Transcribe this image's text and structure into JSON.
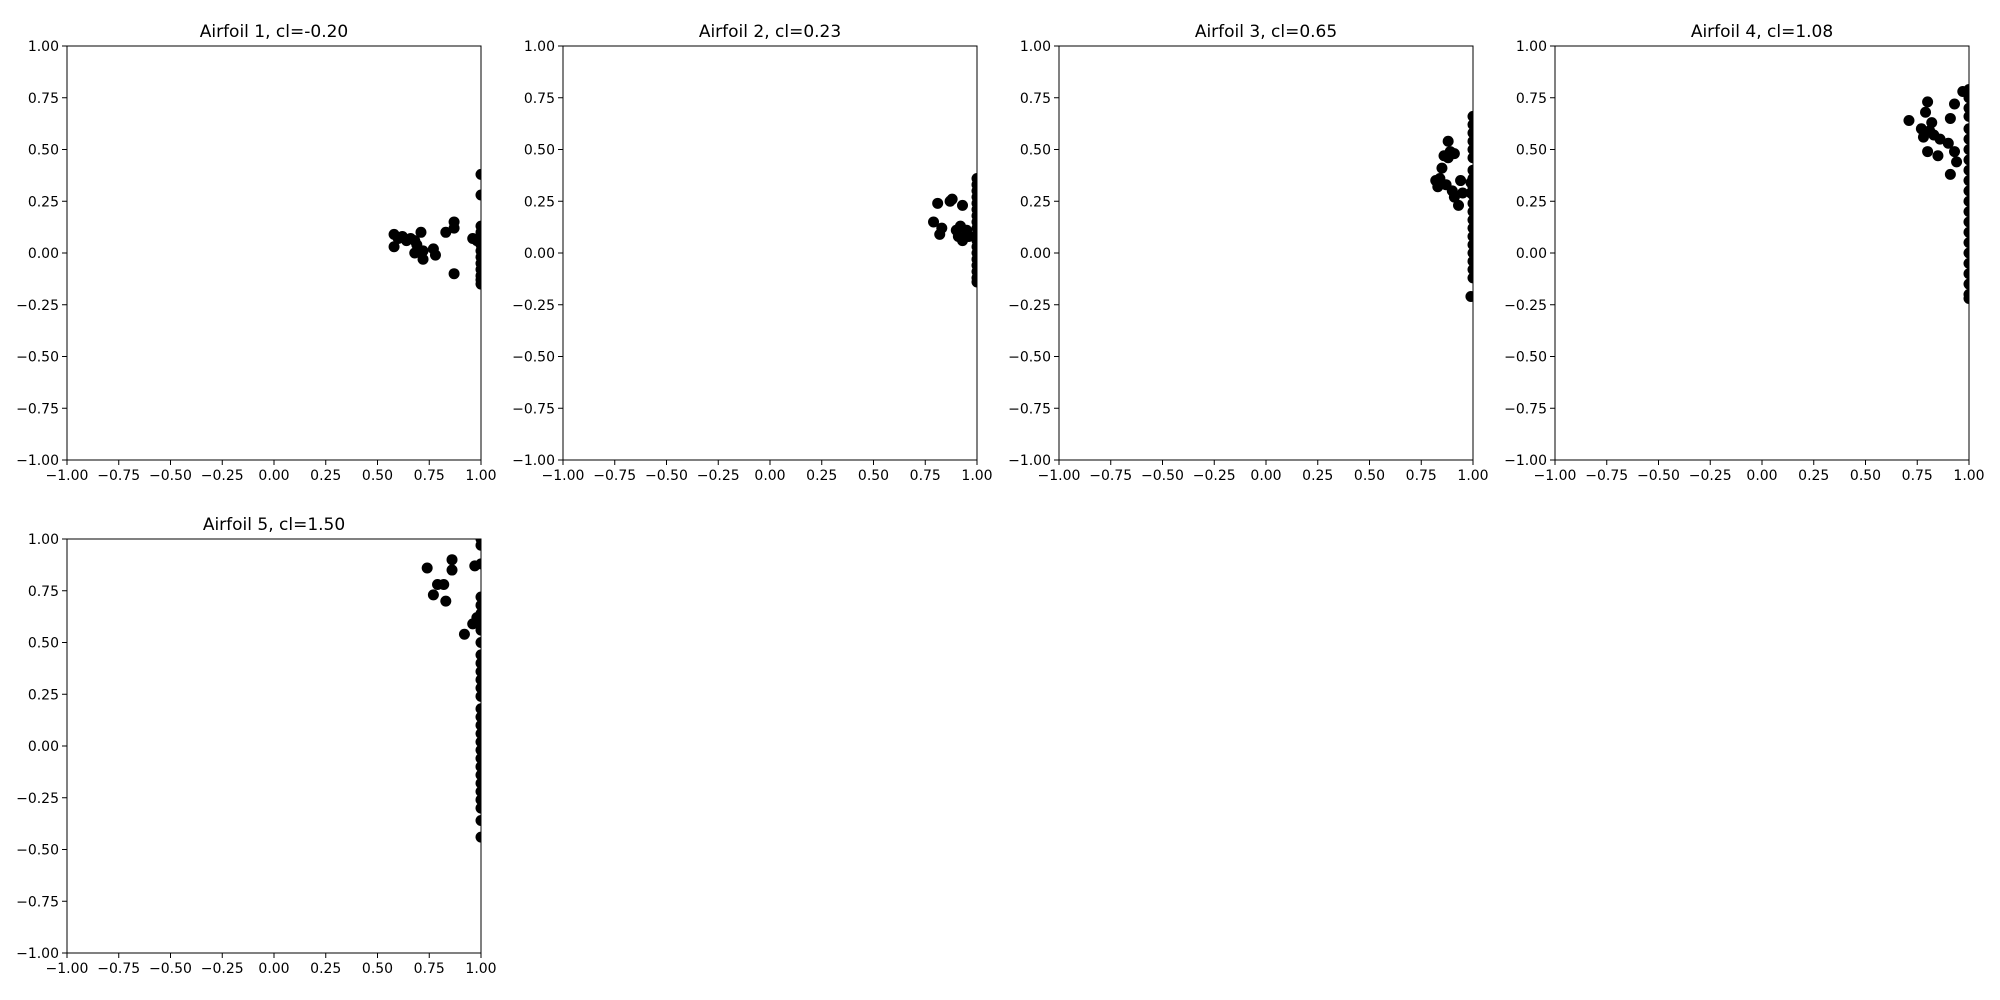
{
  "chart_data": [
    {
      "type": "scatter",
      "title": "Airfoil 1, cl=-0.20",
      "xlim": [
        -1,
        1
      ],
      "ylim": [
        -1,
        1
      ],
      "xticks": [
        -1,
        -0.75,
        -0.5,
        -0.25,
        0,
        0.25,
        0.5,
        0.75,
        1
      ],
      "yticks": [
        -1,
        -0.75,
        -0.5,
        -0.25,
        0,
        0.25,
        0.5,
        0.75,
        1
      ],
      "xtick_labels": [
        "−1.00",
        "−0.75",
        "−0.50",
        "−0.25",
        "0.00",
        "0.25",
        "0.50",
        "0.75",
        "1.00"
      ],
      "ytick_labels": [
        "−1.00",
        "−0.75",
        "−0.50",
        "−0.25",
        "0.00",
        "0.25",
        "0.50",
        "0.75",
        "1.00"
      ],
      "grid": false,
      "marker_color": "#000000",
      "points": [
        [
          0.58,
          0.09
        ],
        [
          0.58,
          0.03
        ],
        [
          0.6,
          0.07
        ],
        [
          0.62,
          0.08
        ],
        [
          0.64,
          0.06
        ],
        [
          0.66,
          0.07
        ],
        [
          0.68,
          0.06
        ],
        [
          0.69,
          0.04
        ],
        [
          0.68,
          0.0
        ],
        [
          0.71,
          0.1
        ],
        [
          0.72,
          -0.03
        ],
        [
          0.72,
          0.01
        ],
        [
          0.77,
          0.02
        ],
        [
          0.78,
          -0.01
        ],
        [
          0.83,
          0.1
        ],
        [
          0.87,
          0.15
        ],
        [
          0.87,
          0.12
        ],
        [
          0.87,
          -0.1
        ],
        [
          0.96,
          0.07
        ],
        [
          0.98,
          0.06
        ],
        [
          1.0,
          0.38
        ],
        [
          1.0,
          0.28
        ],
        [
          1.0,
          0.13
        ],
        [
          1.0,
          0.1
        ],
        [
          1.0,
          0.07
        ],
        [
          1.0,
          0.04
        ],
        [
          1.0,
          0.01
        ],
        [
          1.0,
          -0.02
        ],
        [
          1.0,
          -0.05
        ],
        [
          1.0,
          -0.08
        ],
        [
          1.0,
          -0.11
        ],
        [
          1.0,
          -0.13
        ],
        [
          1.0,
          -0.15
        ]
      ]
    },
    {
      "type": "scatter",
      "title": "Airfoil 2, cl=0.23",
      "xlim": [
        -1,
        1
      ],
      "ylim": [
        -1,
        1
      ],
      "xticks": [
        -1,
        -0.75,
        -0.5,
        -0.25,
        0,
        0.25,
        0.5,
        0.75,
        1
      ],
      "yticks": [
        -1,
        -0.75,
        -0.5,
        -0.25,
        0,
        0.25,
        0.5,
        0.75,
        1
      ],
      "xtick_labels": [
        "−1.00",
        "−0.75",
        "−0.50",
        "−0.25",
        "0.00",
        "0.25",
        "0.50",
        "0.75",
        "1.00"
      ],
      "ytick_labels": [
        "−1.00",
        "−0.75",
        "−0.50",
        "−0.25",
        "0.00",
        "0.25",
        "0.50",
        "0.75",
        "1.00"
      ],
      "grid": false,
      "marker_color": "#000000",
      "points": [
        [
          0.79,
          0.15
        ],
        [
          0.81,
          0.24
        ],
        [
          0.82,
          0.09
        ],
        [
          0.83,
          0.12
        ],
        [
          0.87,
          0.25
        ],
        [
          0.88,
          0.26
        ],
        [
          0.9,
          0.11
        ],
        [
          0.91,
          0.08
        ],
        [
          0.92,
          0.13
        ],
        [
          0.93,
          0.06
        ],
        [
          0.93,
          0.23
        ],
        [
          0.95,
          0.11
        ],
        [
          0.96,
          0.08
        ],
        [
          1.0,
          0.36
        ],
        [
          1.0,
          0.33
        ],
        [
          1.0,
          0.3
        ],
        [
          1.0,
          0.27
        ],
        [
          1.0,
          0.24
        ],
        [
          1.0,
          0.21
        ],
        [
          1.0,
          0.18
        ],
        [
          1.0,
          0.15
        ],
        [
          1.0,
          0.12
        ],
        [
          1.0,
          0.09
        ],
        [
          1.0,
          0.06
        ],
        [
          1.0,
          0.03
        ],
        [
          1.0,
          0.0
        ],
        [
          1.0,
          -0.03
        ],
        [
          1.0,
          -0.06
        ],
        [
          1.0,
          -0.09
        ],
        [
          1.0,
          -0.12
        ],
        [
          1.0,
          -0.14
        ]
      ]
    },
    {
      "type": "scatter",
      "title": "Airfoil 3, cl=0.65",
      "xlim": [
        -1,
        1
      ],
      "ylim": [
        -1,
        1
      ],
      "xticks": [
        -1,
        -0.75,
        -0.5,
        -0.25,
        0,
        0.25,
        0.5,
        0.75,
        1
      ],
      "yticks": [
        -1,
        -0.75,
        -0.5,
        -0.25,
        0,
        0.25,
        0.5,
        0.75,
        1
      ],
      "xtick_labels": [
        "−1.00",
        "−0.75",
        "−0.50",
        "−0.25",
        "0.00",
        "0.25",
        "0.50",
        "0.75",
        "1.00"
      ],
      "ytick_labels": [
        "−1.00",
        "−0.75",
        "−0.50",
        "−0.25",
        "0.00",
        "0.25",
        "0.50",
        "0.75",
        "1.00"
      ],
      "grid": false,
      "marker_color": "#000000",
      "points": [
        [
          0.82,
          0.35
        ],
        [
          0.83,
          0.32
        ],
        [
          0.84,
          0.36
        ],
        [
          0.85,
          0.41
        ],
        [
          0.86,
          0.47
        ],
        [
          0.87,
          0.33
        ],
        [
          0.88,
          0.54
        ],
        [
          0.88,
          0.46
        ],
        [
          0.89,
          0.49
        ],
        [
          0.9,
          0.3
        ],
        [
          0.91,
          0.48
        ],
        [
          0.91,
          0.27
        ],
        [
          0.93,
          0.23
        ],
        [
          0.94,
          0.35
        ],
        [
          0.95,
          0.29
        ],
        [
          0.99,
          0.34
        ],
        [
          0.99,
          0.29
        ],
        [
          0.99,
          -0.21
        ],
        [
          1.0,
          0.66
        ],
        [
          1.0,
          0.62
        ],
        [
          1.0,
          0.58
        ],
        [
          1.0,
          0.54
        ],
        [
          1.0,
          0.5
        ],
        [
          1.0,
          0.46
        ],
        [
          1.0,
          0.4
        ],
        [
          1.0,
          0.36
        ],
        [
          1.0,
          0.32
        ],
        [
          1.0,
          0.28
        ],
        [
          1.0,
          0.24
        ],
        [
          1.0,
          0.2
        ],
        [
          1.0,
          0.16
        ],
        [
          1.0,
          0.12
        ],
        [
          1.0,
          0.08
        ],
        [
          1.0,
          0.04
        ],
        [
          1.0,
          0.0
        ],
        [
          1.0,
          -0.04
        ],
        [
          1.0,
          -0.08
        ],
        [
          1.0,
          -0.12
        ]
      ]
    },
    {
      "type": "scatter",
      "title": "Airfoil 4, cl=1.08",
      "xlim": [
        -1,
        1
      ],
      "ylim": [
        -1,
        1
      ],
      "xticks": [
        -1,
        -0.75,
        -0.5,
        -0.25,
        0,
        0.25,
        0.5,
        0.75,
        1
      ],
      "yticks": [
        -1,
        -0.75,
        -0.5,
        -0.25,
        0,
        0.25,
        0.5,
        0.75,
        1
      ],
      "xtick_labels": [
        "−1.00",
        "−0.75",
        "−0.50",
        "−0.25",
        "0.00",
        "0.25",
        "0.50",
        "0.75",
        "1.00"
      ],
      "ytick_labels": [
        "−1.00",
        "−0.75",
        "−0.50",
        "−0.25",
        "0.00",
        "0.25",
        "0.50",
        "0.75",
        "1.00"
      ],
      "grid": false,
      "marker_color": "#000000",
      "points": [
        [
          0.71,
          0.64
        ],
        [
          0.77,
          0.6
        ],
        [
          0.78,
          0.56
        ],
        [
          0.79,
          0.68
        ],
        [
          0.8,
          0.73
        ],
        [
          0.8,
          0.49
        ],
        [
          0.81,
          0.59
        ],
        [
          0.82,
          0.63
        ],
        [
          0.83,
          0.57
        ],
        [
          0.85,
          0.47
        ],
        [
          0.86,
          0.55
        ],
        [
          0.9,
          0.53
        ],
        [
          0.91,
          0.38
        ],
        [
          0.91,
          0.65
        ],
        [
          0.93,
          0.72
        ],
        [
          0.93,
          0.49
        ],
        [
          0.94,
          0.44
        ],
        [
          0.97,
          0.78
        ],
        [
          1.0,
          0.79
        ],
        [
          1.0,
          0.75
        ],
        [
          1.0,
          0.7
        ],
        [
          1.0,
          0.66
        ],
        [
          1.0,
          0.6
        ],
        [
          1.0,
          0.55
        ],
        [
          1.0,
          0.5
        ],
        [
          1.0,
          0.45
        ],
        [
          1.0,
          0.4
        ],
        [
          1.0,
          0.35
        ],
        [
          1.0,
          0.3
        ],
        [
          1.0,
          0.25
        ],
        [
          1.0,
          0.2
        ],
        [
          1.0,
          0.15
        ],
        [
          1.0,
          0.1
        ],
        [
          1.0,
          0.05
        ],
        [
          1.0,
          0.0
        ],
        [
          1.0,
          -0.05
        ],
        [
          1.0,
          -0.1
        ],
        [
          1.0,
          -0.15
        ],
        [
          1.0,
          -0.2
        ],
        [
          1.0,
          -0.22
        ]
      ]
    },
    {
      "type": "scatter",
      "title": "Airfoil 5, cl=1.50",
      "xlim": [
        -1,
        1
      ],
      "ylim": [
        -1,
        1
      ],
      "xticks": [
        -1,
        -0.75,
        -0.5,
        -0.25,
        0,
        0.25,
        0.5,
        0.75,
        1
      ],
      "yticks": [
        -1,
        -0.75,
        -0.5,
        -0.25,
        0,
        0.25,
        0.5,
        0.75,
        1
      ],
      "xtick_labels": [
        "−1.00",
        "−0.75",
        "−0.50",
        "−0.25",
        "0.00",
        "0.25",
        "0.50",
        "0.75",
        "1.00"
      ],
      "ytick_labels": [
        "−1.00",
        "−0.75",
        "−0.50",
        "−0.25",
        "0.00",
        "0.25",
        "0.50",
        "0.75",
        "1.00"
      ],
      "grid": false,
      "marker_color": "#000000",
      "points": [
        [
          0.74,
          0.86
        ],
        [
          0.77,
          0.73
        ],
        [
          0.79,
          0.78
        ],
        [
          0.82,
          0.78
        ],
        [
          0.83,
          0.7
        ],
        [
          0.86,
          0.9
        ],
        [
          0.86,
          0.85
        ],
        [
          0.92,
          0.54
        ],
        [
          0.96,
          0.59
        ],
        [
          0.97,
          0.87
        ],
        [
          0.98,
          0.62
        ],
        [
          1.0,
          1.0
        ],
        [
          1.0,
          0.97
        ],
        [
          1.0,
          0.88
        ],
        [
          1.0,
          0.72
        ],
        [
          1.0,
          0.68
        ],
        [
          1.0,
          0.64
        ],
        [
          1.0,
          0.6
        ],
        [
          1.0,
          0.56
        ],
        [
          1.0,
          0.5
        ],
        [
          1.0,
          0.44
        ],
        [
          1.0,
          0.4
        ],
        [
          1.0,
          0.36
        ],
        [
          1.0,
          0.32
        ],
        [
          1.0,
          0.28
        ],
        [
          1.0,
          0.24
        ],
        [
          1.0,
          0.18
        ],
        [
          1.0,
          0.14
        ],
        [
          1.0,
          0.1
        ],
        [
          1.0,
          0.06
        ],
        [
          1.0,
          0.02
        ],
        [
          1.0,
          -0.02
        ],
        [
          1.0,
          -0.06
        ],
        [
          1.0,
          -0.1
        ],
        [
          1.0,
          -0.14
        ],
        [
          1.0,
          -0.18
        ],
        [
          1.0,
          -0.22
        ],
        [
          1.0,
          -0.26
        ],
        [
          1.0,
          -0.3
        ],
        [
          1.0,
          -0.36
        ],
        [
          1.0,
          -0.44
        ]
      ]
    }
  ]
}
